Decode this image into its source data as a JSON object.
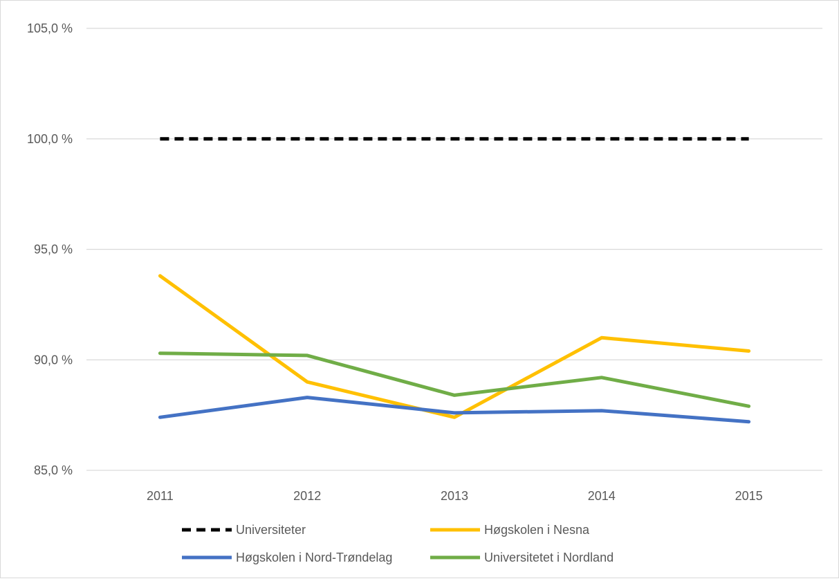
{
  "chart_data": {
    "type": "line",
    "title": "",
    "xlabel": "",
    "ylabel": "",
    "categories": [
      "2011",
      "2012",
      "2013",
      "2014",
      "2015"
    ],
    "y_ticks": [
      "85,0 %",
      "90,0 %",
      "95,0 %",
      "100,0 %",
      "105,0 %"
    ],
    "y_tick_values": [
      85,
      90,
      95,
      100,
      105
    ],
    "ylim": [
      85,
      105
    ],
    "grid": true,
    "legend_position": "bottom",
    "series": [
      {
        "name": "Universiteter",
        "values": [
          100.0,
          100.0,
          100.0,
          100.0,
          100.0
        ],
        "color": "#000000",
        "style": "dashed"
      },
      {
        "name": "Høgskolen i Nesna",
        "values": [
          93.8,
          89.0,
          87.4,
          91.0,
          90.4
        ],
        "color": "#ffc000",
        "style": "solid"
      },
      {
        "name": "Høgskolen i Nord-Trøndelag",
        "values": [
          87.4,
          88.3,
          87.6,
          87.7,
          87.2
        ],
        "color": "#4472c4",
        "style": "solid"
      },
      {
        "name": "Universitetet i Nordland",
        "values": [
          90.3,
          90.2,
          88.4,
          89.2,
          87.9
        ],
        "color": "#70ad47",
        "style": "solid"
      }
    ]
  }
}
